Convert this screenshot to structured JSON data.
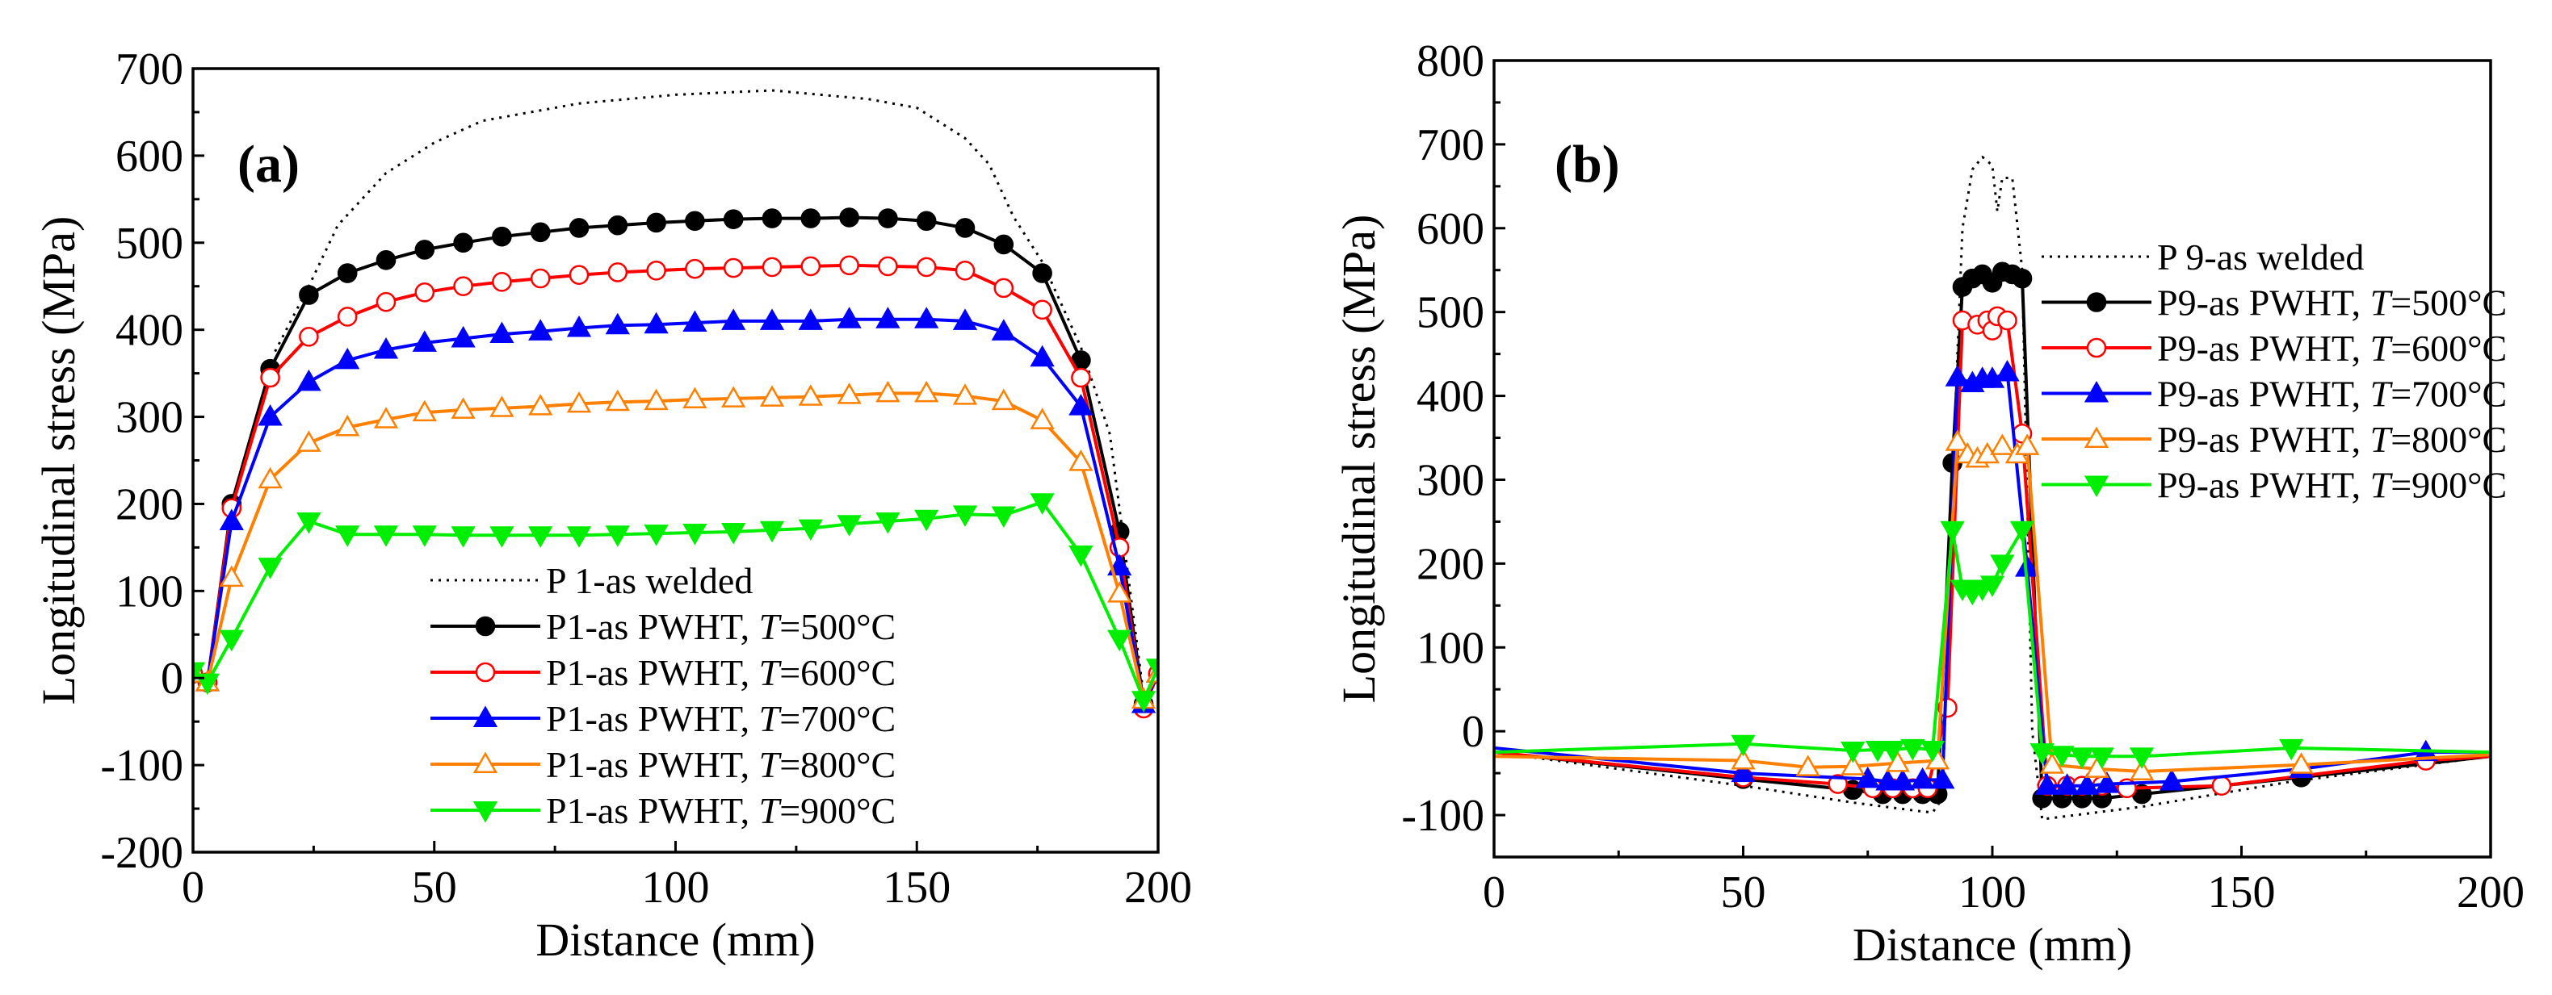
{
  "chart_data": [
    {
      "type": "line",
      "panel_label": "(a)",
      "xlabel": "Distance (mm)",
      "ylabel": "Longitudinal stress (MPa)",
      "xlim": [
        0,
        200
      ],
      "ylim": [
        -200,
        700
      ],
      "xticks": [
        0,
        50,
        100,
        150,
        200
      ],
      "yticks": [
        -200,
        -100,
        0,
        100,
        200,
        300,
        400,
        500,
        600,
        700
      ],
      "legend_position": "lower-center",
      "series": [
        {
          "name": "P 1-as welded",
          "color": "#000000",
          "style": "dotted",
          "marker": "none",
          "x": [
            17,
            24,
            30,
            40,
            50,
            60,
            80,
            100,
            120,
            140,
            150,
            160,
            165,
            170,
            176,
            184,
            190,
            197
          ],
          "y": [
            375,
            450,
            520,
            580,
            615,
            640,
            660,
            670,
            675,
            665,
            655,
            620,
            590,
            530,
            478,
            380,
            280,
            -20
          ]
        },
        {
          "name": "P1-as PWHT, T=500°C",
          "name_prefix": "P1-as PWHT, ",
          "name_var": "T",
          "name_suffix": "=500°C",
          "color": "#000000",
          "style": "solid",
          "marker": "circle-filled",
          "x": [
            0,
            3,
            8,
            16,
            24,
            32,
            40,
            48,
            56,
            64,
            72,
            80,
            88,
            96,
            104,
            112,
            120,
            128,
            136,
            144,
            152,
            160,
            168,
            176,
            184,
            192,
            197,
            200
          ],
          "y": [
            5,
            -5,
            200,
            355,
            440,
            465,
            480,
            492,
            500,
            507,
            512,
            517,
            520,
            523,
            525,
            527,
            528,
            528,
            529,
            528,
            525,
            517,
            498,
            465,
            365,
            168,
            -30,
            5
          ]
        },
        {
          "name": "P1-as PWHT, T=600°C",
          "name_prefix": "P1-as PWHT, ",
          "name_var": "T",
          "name_suffix": "=600°C",
          "color": "#ff0000",
          "style": "solid",
          "marker": "circle-open",
          "x": [
            0,
            3,
            8,
            16,
            24,
            32,
            40,
            48,
            56,
            64,
            72,
            80,
            88,
            96,
            104,
            112,
            120,
            128,
            136,
            144,
            152,
            160,
            168,
            176,
            184,
            192,
            197,
            200
          ],
          "y": [
            5,
            -5,
            195,
            345,
            392,
            415,
            432,
            443,
            450,
            455,
            459,
            463,
            466,
            468,
            470,
            471,
            472,
            473,
            474,
            473,
            472,
            468,
            448,
            423,
            345,
            150,
            -35,
            5
          ]
        },
        {
          "name": "P1-as PWHT, T=700°C",
          "name_prefix": "P1-as PWHT, ",
          "name_var": "T",
          "name_suffix": "=700°C",
          "color": "#0000ff",
          "style": "solid",
          "marker": "triangle-up-filled",
          "x": [
            0,
            3,
            8,
            16,
            24,
            32,
            40,
            48,
            56,
            64,
            72,
            80,
            88,
            96,
            104,
            112,
            120,
            128,
            136,
            144,
            152,
            160,
            168,
            176,
            184,
            192,
            197,
            200
          ],
          "y": [
            5,
            -5,
            180,
            300,
            340,
            365,
            377,
            385,
            390,
            395,
            398,
            402,
            405,
            406,
            408,
            410,
            410,
            410,
            412,
            412,
            412,
            410,
            398,
            368,
            312,
            128,
            -30,
            5
          ]
        },
        {
          "name": "P1-as PWHT, T=800°C",
          "name_prefix": "P1-as PWHT, ",
          "name_var": "T",
          "name_suffix": "=800°C",
          "color": "#ff8000",
          "style": "solid",
          "marker": "triangle-up-open",
          "x": [
            0,
            3,
            8,
            16,
            24,
            32,
            40,
            48,
            56,
            64,
            72,
            80,
            88,
            96,
            104,
            112,
            120,
            128,
            136,
            144,
            152,
            160,
            168,
            176,
            184,
            192,
            197,
            200
          ],
          "y": [
            5,
            -5,
            115,
            228,
            270,
            288,
            297,
            305,
            308,
            310,
            312,
            315,
            317,
            318,
            320,
            321,
            322,
            323,
            325,
            327,
            327,
            324,
            318,
            296,
            248,
            97,
            -25,
            5
          ]
        },
        {
          "name": "P1-as PWHT, T=900°C",
          "name_prefix": "P1-as PWHT, ",
          "name_var": "T",
          "name_suffix": "=900°C",
          "color": "#00ee00",
          "style": "solid",
          "marker": "triangle-down-filled",
          "x": [
            0,
            3,
            8,
            16,
            24,
            32,
            40,
            48,
            56,
            64,
            72,
            80,
            88,
            96,
            104,
            112,
            120,
            128,
            136,
            144,
            152,
            160,
            168,
            176,
            184,
            192,
            197,
            200
          ],
          "y": [
            8,
            -5,
            45,
            128,
            180,
            165,
            165,
            165,
            164,
            164,
            164,
            164,
            165,
            166,
            167,
            168,
            170,
            172,
            177,
            180,
            183,
            188,
            187,
            202,
            142,
            45,
            -25,
            12
          ]
        }
      ]
    },
    {
      "type": "line",
      "panel_label": "(b)",
      "xlabel": "Distance (mm)",
      "ylabel": "Longitudinal stress (MPa)",
      "xlim": [
        0,
        200
      ],
      "ylim": [
        -150,
        800
      ],
      "xticks": [
        0,
        50,
        100,
        150,
        200
      ],
      "yticks": [
        -100,
        0,
        100,
        200,
        300,
        400,
        500,
        600,
        700,
        800
      ],
      "legend_position": "upper-right",
      "series": [
        {
          "name": "P 9-as welded",
          "color": "#000000",
          "style": "dotted",
          "marker": "none",
          "x": [
            0,
            50,
            72,
            85,
            88,
            90,
            92,
            94,
            96,
            98,
            100,
            101,
            102,
            104,
            106,
            108,
            110,
            130,
            160,
            200
          ],
          "y": [
            -25,
            -65,
            -85,
            -95,
            -97,
            -80,
            300,
            600,
            670,
            685,
            675,
            620,
            660,
            660,
            550,
            0,
            -105,
            -90,
            -60,
            -30
          ]
        },
        {
          "name": "P9-as PWHT, T=500°C",
          "name_prefix": "P9-as PWHT, ",
          "name_var": "T",
          "name_suffix": "=500°C",
          "color": "#000000",
          "style": "solid",
          "marker": "circle-filled",
          "x": [
            0,
            50,
            72,
            78,
            82,
            86,
            89,
            92,
            94,
            96,
            98,
            100,
            102,
            104,
            106,
            110,
            114,
            118,
            122,
            130,
            162,
            200
          ],
          "y": [
            -25,
            -57,
            -70,
            -75,
            -75,
            -75,
            -75,
            320,
            530,
            540,
            545,
            535,
            548,
            545,
            540,
            -80,
            -80,
            -80,
            -80,
            -75,
            -55,
            -30
          ]
        },
        {
          "name": "P9-as PWHT, T=600°C",
          "name_prefix": "P9-as PWHT, ",
          "name_var": "T",
          "name_suffix": "=600°C",
          "color": "#ff0000",
          "style": "solid",
          "marker": "circle-open",
          "x": [
            0,
            50,
            69,
            76,
            80,
            84,
            87,
            91,
            94,
            97,
            99,
            100,
            101,
            103,
            106,
            111,
            115,
            118,
            122,
            127,
            146,
            187,
            200
          ],
          "y": [
            -25,
            -55,
            -63,
            -68,
            -68,
            -68,
            -68,
            28,
            490,
            485,
            490,
            478,
            495,
            490,
            355,
            -65,
            -65,
            -65,
            -65,
            -68,
            -65,
            -35,
            -30
          ]
        },
        {
          "name": "P9-as PWHT, T=700°C",
          "name_prefix": "P9-as PWHT, ",
          "name_var": "T",
          "name_suffix": "=700°C",
          "color": "#0000ff",
          "style": "solid",
          "marker": "triangle-up-filled",
          "x": [
            0,
            50,
            75,
            79,
            82,
            86,
            90,
            93,
            96,
            98,
            100,
            103,
            107,
            111,
            115,
            119,
            123,
            136,
            162,
            187,
            200
          ],
          "y": [
            -20,
            -50,
            -57,
            -60,
            -60,
            -58,
            -58,
            422,
            415,
            420,
            420,
            428,
            195,
            -65,
            -65,
            -65,
            -63,
            -60,
            -45,
            -25,
            -25
          ]
        },
        {
          "name": "P9-as PWHT, T=800°C",
          "name_prefix": "P9-as PWHT, ",
          "name_var": "T",
          "name_suffix": "=800°C",
          "color": "#ff8000",
          "style": "solid",
          "marker": "triangle-up-open",
          "x": [
            0,
            50,
            63,
            72,
            81,
            89,
            93,
            95,
            97,
            99,
            102,
            105,
            107,
            112,
            121,
            130,
            162,
            200
          ],
          "y": [
            -30,
            -35,
            -43,
            -42,
            -38,
            -35,
            345,
            330,
            325,
            330,
            340,
            330,
            340,
            -40,
            -45,
            -48,
            -40,
            -28
          ]
        },
        {
          "name": "P9-as PWHT, T=900°C",
          "name_prefix": "P9-as PWHT, ",
          "name_var": "T",
          "name_suffix": "=900°C",
          "color": "#00ee00",
          "style": "solid",
          "marker": "triangle-down-filled",
          "x": [
            0,
            50,
            72,
            77,
            80,
            84,
            88,
            92,
            94,
            96,
            98,
            100,
            102,
            106,
            110,
            114,
            118,
            122,
            130,
            160,
            200
          ],
          "y": [
            -25,
            -15,
            -23,
            -22,
            -22,
            -20,
            -22,
            240,
            170,
            165,
            170,
            175,
            200,
            240,
            -25,
            -28,
            -30,
            -30,
            -30,
            -20,
            -25
          ]
        }
      ]
    }
  ]
}
